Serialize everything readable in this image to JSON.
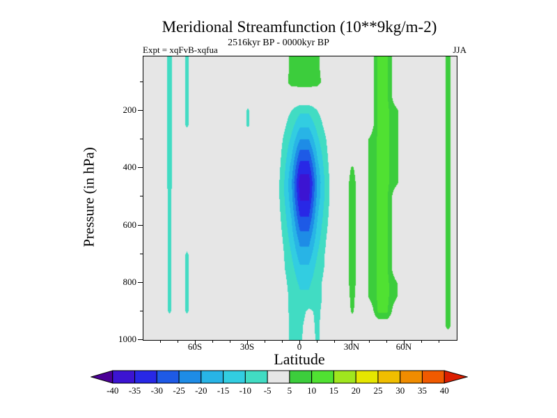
{
  "title": "Meridional Streamfunction (10**9kg/m-2)",
  "subtitle": "2516kyr BP - 0000kyr BP",
  "experiment_label": "Expt = xqFvB-xqfua",
  "season_label": "JJA",
  "axes": {
    "x_label": "Latitude",
    "y_label": "Pressure (in hPa)",
    "x_major_ticks": [
      {
        "value": -60,
        "label": "60S"
      },
      {
        "value": -30,
        "label": "30S"
      },
      {
        "value": 0,
        "label": "0"
      },
      {
        "value": 30,
        "label": "30N"
      },
      {
        "value": 60,
        "label": "60N"
      }
    ],
    "x_minor_ticks": [
      -80,
      -70,
      -50,
      -40,
      -20,
      -10,
      10,
      20,
      40,
      50,
      70,
      80
    ],
    "y_major_ticks": [
      {
        "value": 200,
        "label": "200"
      },
      {
        "value": 400,
        "label": "400"
      },
      {
        "value": 600,
        "label": "600"
      },
      {
        "value": 800,
        "label": "800"
      },
      {
        "value": 1000,
        "label": "1000"
      }
    ],
    "y_minor_ticks": [
      100,
      300,
      500,
      700,
      900
    ]
  },
  "colorbar": {
    "levels": [
      -40,
      -35,
      -30,
      -25,
      -20,
      -15,
      -10,
      -5,
      5,
      10,
      15,
      20,
      25,
      30,
      35,
      40
    ],
    "labels": [
      "-40",
      "-35",
      "-30",
      "-25",
      "-20",
      "-15",
      "-10",
      "-5",
      "5",
      "10",
      "15",
      "20",
      "25",
      "30",
      "35",
      "40"
    ],
    "colors": [
      "#4b0096",
      "#3c14d2",
      "#2828e6",
      "#1e5ae6",
      "#1e8ce6",
      "#28b4e6",
      "#32cde1",
      "#41dcc3",
      "#e6e6e6",
      "#3ccd3c",
      "#50e132",
      "#a0e61e",
      "#e6e600",
      "#f0be00",
      "#f08c00",
      "#f05a00",
      "#dc1e00"
    ]
  },
  "colors": {
    "background": "#ffffff",
    "plot_background": "#e6e6e6",
    "axis": "#000000",
    "text": "#000000"
  },
  "chart_data": {
    "type": "heatmap",
    "title": "Meridional Streamfunction (10**9kg/m-2)",
    "subtitle": "2516kyr BP - 0000kyr BP",
    "xlabel": "Latitude",
    "ylabel": "Pressure (in hPa)",
    "units": "10**9 kg/m-2",
    "x_range": [
      -90,
      90
    ],
    "y_range": [
      10,
      1000
    ],
    "x": [
      -90,
      -85,
      -80,
      -75,
      -70,
      -65,
      -60,
      -55,
      -50,
      -45,
      -40,
      -35,
      -30,
      -25,
      -20,
      -15,
      -10,
      -5,
      0,
      5,
      10,
      15,
      20,
      25,
      30,
      35,
      40,
      45,
      50,
      55,
      60,
      65,
      70,
      75,
      80,
      85,
      90
    ],
    "y": [
      50,
      100,
      150,
      200,
      250,
      300,
      350,
      400,
      450,
      500,
      550,
      600,
      650,
      700,
      750,
      800,
      850,
      900,
      950,
      1000
    ],
    "values": [
      [
        0,
        0,
        0,
        -7,
        0,
        -6,
        0,
        0,
        0,
        0,
        0,
        0,
        0,
        0,
        0,
        0,
        2,
        6,
        6,
        6,
        6,
        2,
        0,
        0,
        0,
        0,
        0,
        11,
        11,
        0,
        0,
        0,
        0,
        0,
        0,
        7,
        0
      ],
      [
        0,
        0,
        0,
        -7,
        0,
        -6,
        0,
        0,
        0,
        0,
        0,
        0,
        0,
        0,
        0,
        0,
        2,
        7,
        7,
        7,
        7,
        2,
        0,
        0,
        0,
        0,
        0,
        11,
        11,
        0,
        0,
        0,
        0,
        0,
        0,
        7,
        0
      ],
      [
        0,
        0,
        0,
        -7,
        0,
        -6,
        0,
        0,
        0,
        0,
        0,
        0,
        0,
        0,
        0,
        0,
        0,
        0,
        1,
        1,
        0,
        0,
        0,
        0,
        0,
        0,
        0,
        11,
        11,
        0,
        0,
        0,
        0,
        0,
        0,
        7,
        0
      ],
      [
        0,
        0,
        0,
        -7,
        0,
        -6,
        0,
        0,
        0,
        0,
        0,
        0,
        -6,
        0,
        0,
        0,
        -2,
        -5,
        -9,
        -9,
        -5,
        -2,
        0,
        0,
        0,
        0,
        0,
        11,
        11,
        7,
        0,
        0,
        0,
        0,
        0,
        7,
        0
      ],
      [
        0,
        0,
        0,
        -7,
        0,
        -6,
        0,
        0,
        0,
        0,
        0,
        0,
        -6,
        0,
        0,
        0,
        -3,
        -8,
        -14,
        -14,
        -8,
        -3,
        0,
        0,
        0,
        0,
        0,
        11,
        11,
        7,
        0,
        0,
        0,
        0,
        0,
        7,
        0
      ],
      [
        0,
        0,
        0,
        -7,
        0,
        0,
        0,
        0,
        0,
        0,
        0,
        0,
        0,
        0,
        0,
        0,
        -5,
        -11,
        -20,
        -20,
        -11,
        -5,
        0,
        0,
        0,
        0,
        6,
        11,
        11,
        7,
        0,
        0,
        0,
        0,
        0,
        7,
        0
      ],
      [
        0,
        0,
        0,
        -7,
        0,
        0,
        0,
        0,
        0,
        0,
        0,
        0,
        0,
        0,
        0,
        0,
        -6,
        -14,
        -27,
        -27,
        -14,
        -6,
        0,
        0,
        0,
        0,
        6,
        11,
        11,
        7,
        0,
        0,
        0,
        0,
        0,
        7,
        0
      ],
      [
        0,
        0,
        0,
        -7,
        0,
        0,
        0,
        0,
        0,
        0,
        0,
        0,
        0,
        0,
        0,
        0,
        -7,
        -17,
        -33,
        -33,
        -17,
        -7,
        0,
        0,
        6,
        0,
        6,
        11,
        11,
        7,
        0,
        0,
        0,
        0,
        0,
        7,
        0
      ],
      [
        0,
        0,
        0,
        -7,
        0,
        0,
        0,
        0,
        0,
        0,
        0,
        0,
        0,
        0,
        0,
        0,
        -8,
        -19,
        -38,
        -38,
        -19,
        -8,
        0,
        0,
        8,
        0,
        6,
        11,
        11,
        7,
        0,
        0,
        0,
        0,
        0,
        7,
        0
      ],
      [
        0,
        0,
        0,
        -6,
        0,
        0,
        0,
        0,
        0,
        0,
        0,
        0,
        0,
        0,
        0,
        0,
        -8,
        -18,
        -36,
        -36,
        -18,
        -8,
        0,
        0,
        8,
        0,
        6,
        11,
        11,
        0,
        0,
        0,
        0,
        0,
        0,
        7,
        0
      ],
      [
        0,
        0,
        0,
        -6,
        0,
        0,
        0,
        0,
        0,
        0,
        0,
        0,
        0,
        0,
        0,
        0,
        -7,
        -16,
        -32,
        -32,
        -16,
        -7,
        0,
        0,
        8,
        0,
        6,
        11,
        11,
        0,
        0,
        0,
        0,
        0,
        0,
        7,
        0
      ],
      [
        0,
        0,
        0,
        -6,
        0,
        0,
        0,
        0,
        0,
        0,
        0,
        0,
        0,
        0,
        0,
        0,
        -6,
        -14,
        -27,
        -27,
        -14,
        -6,
        0,
        0,
        8,
        0,
        6,
        11,
        11,
        0,
        0,
        0,
        0,
        0,
        0,
        7,
        0
      ],
      [
        0,
        0,
        0,
        -6,
        0,
        0,
        0,
        0,
        0,
        0,
        0,
        0,
        0,
        0,
        0,
        0,
        -5,
        -12,
        -22,
        -22,
        -12,
        -5,
        0,
        0,
        8,
        0,
        6,
        11,
        11,
        0,
        0,
        0,
        0,
        0,
        0,
        7,
        0
      ],
      [
        0,
        0,
        0,
        -6,
        0,
        -6,
        0,
        0,
        0,
        0,
        0,
        0,
        0,
        0,
        0,
        0,
        -4,
        -10,
        -18,
        -18,
        -10,
        -4,
        0,
        0,
        8,
        0,
        6,
        11,
        11,
        0,
        0,
        0,
        0,
        0,
        0,
        7,
        0
      ],
      [
        0,
        0,
        0,
        -6,
        0,
        -6,
        0,
        0,
        0,
        0,
        0,
        0,
        0,
        0,
        0,
        0,
        -4,
        -8,
        -14,
        -14,
        -8,
        -4,
        0,
        0,
        8,
        0,
        6,
        11,
        11,
        0,
        0,
        0,
        0,
        0,
        0,
        7,
        0
      ],
      [
        0,
        0,
        0,
        -6,
        0,
        -6,
        0,
        0,
        0,
        0,
        0,
        0,
        0,
        0,
        0,
        0,
        -3,
        -7,
        -11,
        -11,
        -7,
        -3,
        0,
        0,
        8,
        0,
        6,
        11,
        11,
        6,
        0,
        0,
        0,
        0,
        0,
        7,
        0
      ],
      [
        0,
        0,
        0,
        -6,
        0,
        -6,
        0,
        0,
        0,
        0,
        0,
        0,
        0,
        0,
        0,
        0,
        -3,
        -6,
        -9,
        -9,
        -7,
        -3,
        0,
        0,
        7,
        0,
        6,
        11,
        11,
        6,
        0,
        0,
        0,
        0,
        0,
        7,
        0
      ],
      [
        0,
        0,
        0,
        -6,
        0,
        -6,
        0,
        0,
        0,
        0,
        0,
        0,
        0,
        0,
        0,
        0,
        -3,
        -6,
        -7,
        -4,
        -6,
        -3,
        0,
        0,
        6,
        0,
        0,
        11,
        11,
        0,
        0,
        0,
        0,
        0,
        0,
        7,
        0
      ],
      [
        0,
        0,
        0,
        0,
        0,
        0,
        0,
        0,
        0,
        0,
        0,
        0,
        0,
        0,
        0,
        0,
        -2,
        -6,
        -6,
        -3,
        -6,
        -2,
        0,
        0,
        0,
        0,
        0,
        0,
        0,
        0,
        0,
        0,
        0,
        0,
        0,
        7,
        0
      ],
      [
        0,
        0,
        0,
        0,
        0,
        0,
        0,
        0,
        0,
        0,
        0,
        0,
        0,
        0,
        0,
        0,
        -2,
        -6,
        -6,
        -2,
        -6,
        -2,
        0,
        0,
        0,
        0,
        0,
        0,
        0,
        0,
        0,
        0,
        0,
        0,
        0,
        0,
        0
      ]
    ],
    "contour_levels": [
      -40,
      -35,
      -30,
      -25,
      -20,
      -15,
      -10,
      -5,
      5,
      10,
      15,
      20,
      25,
      30,
      35,
      40
    ],
    "legend_position": "bottom"
  }
}
